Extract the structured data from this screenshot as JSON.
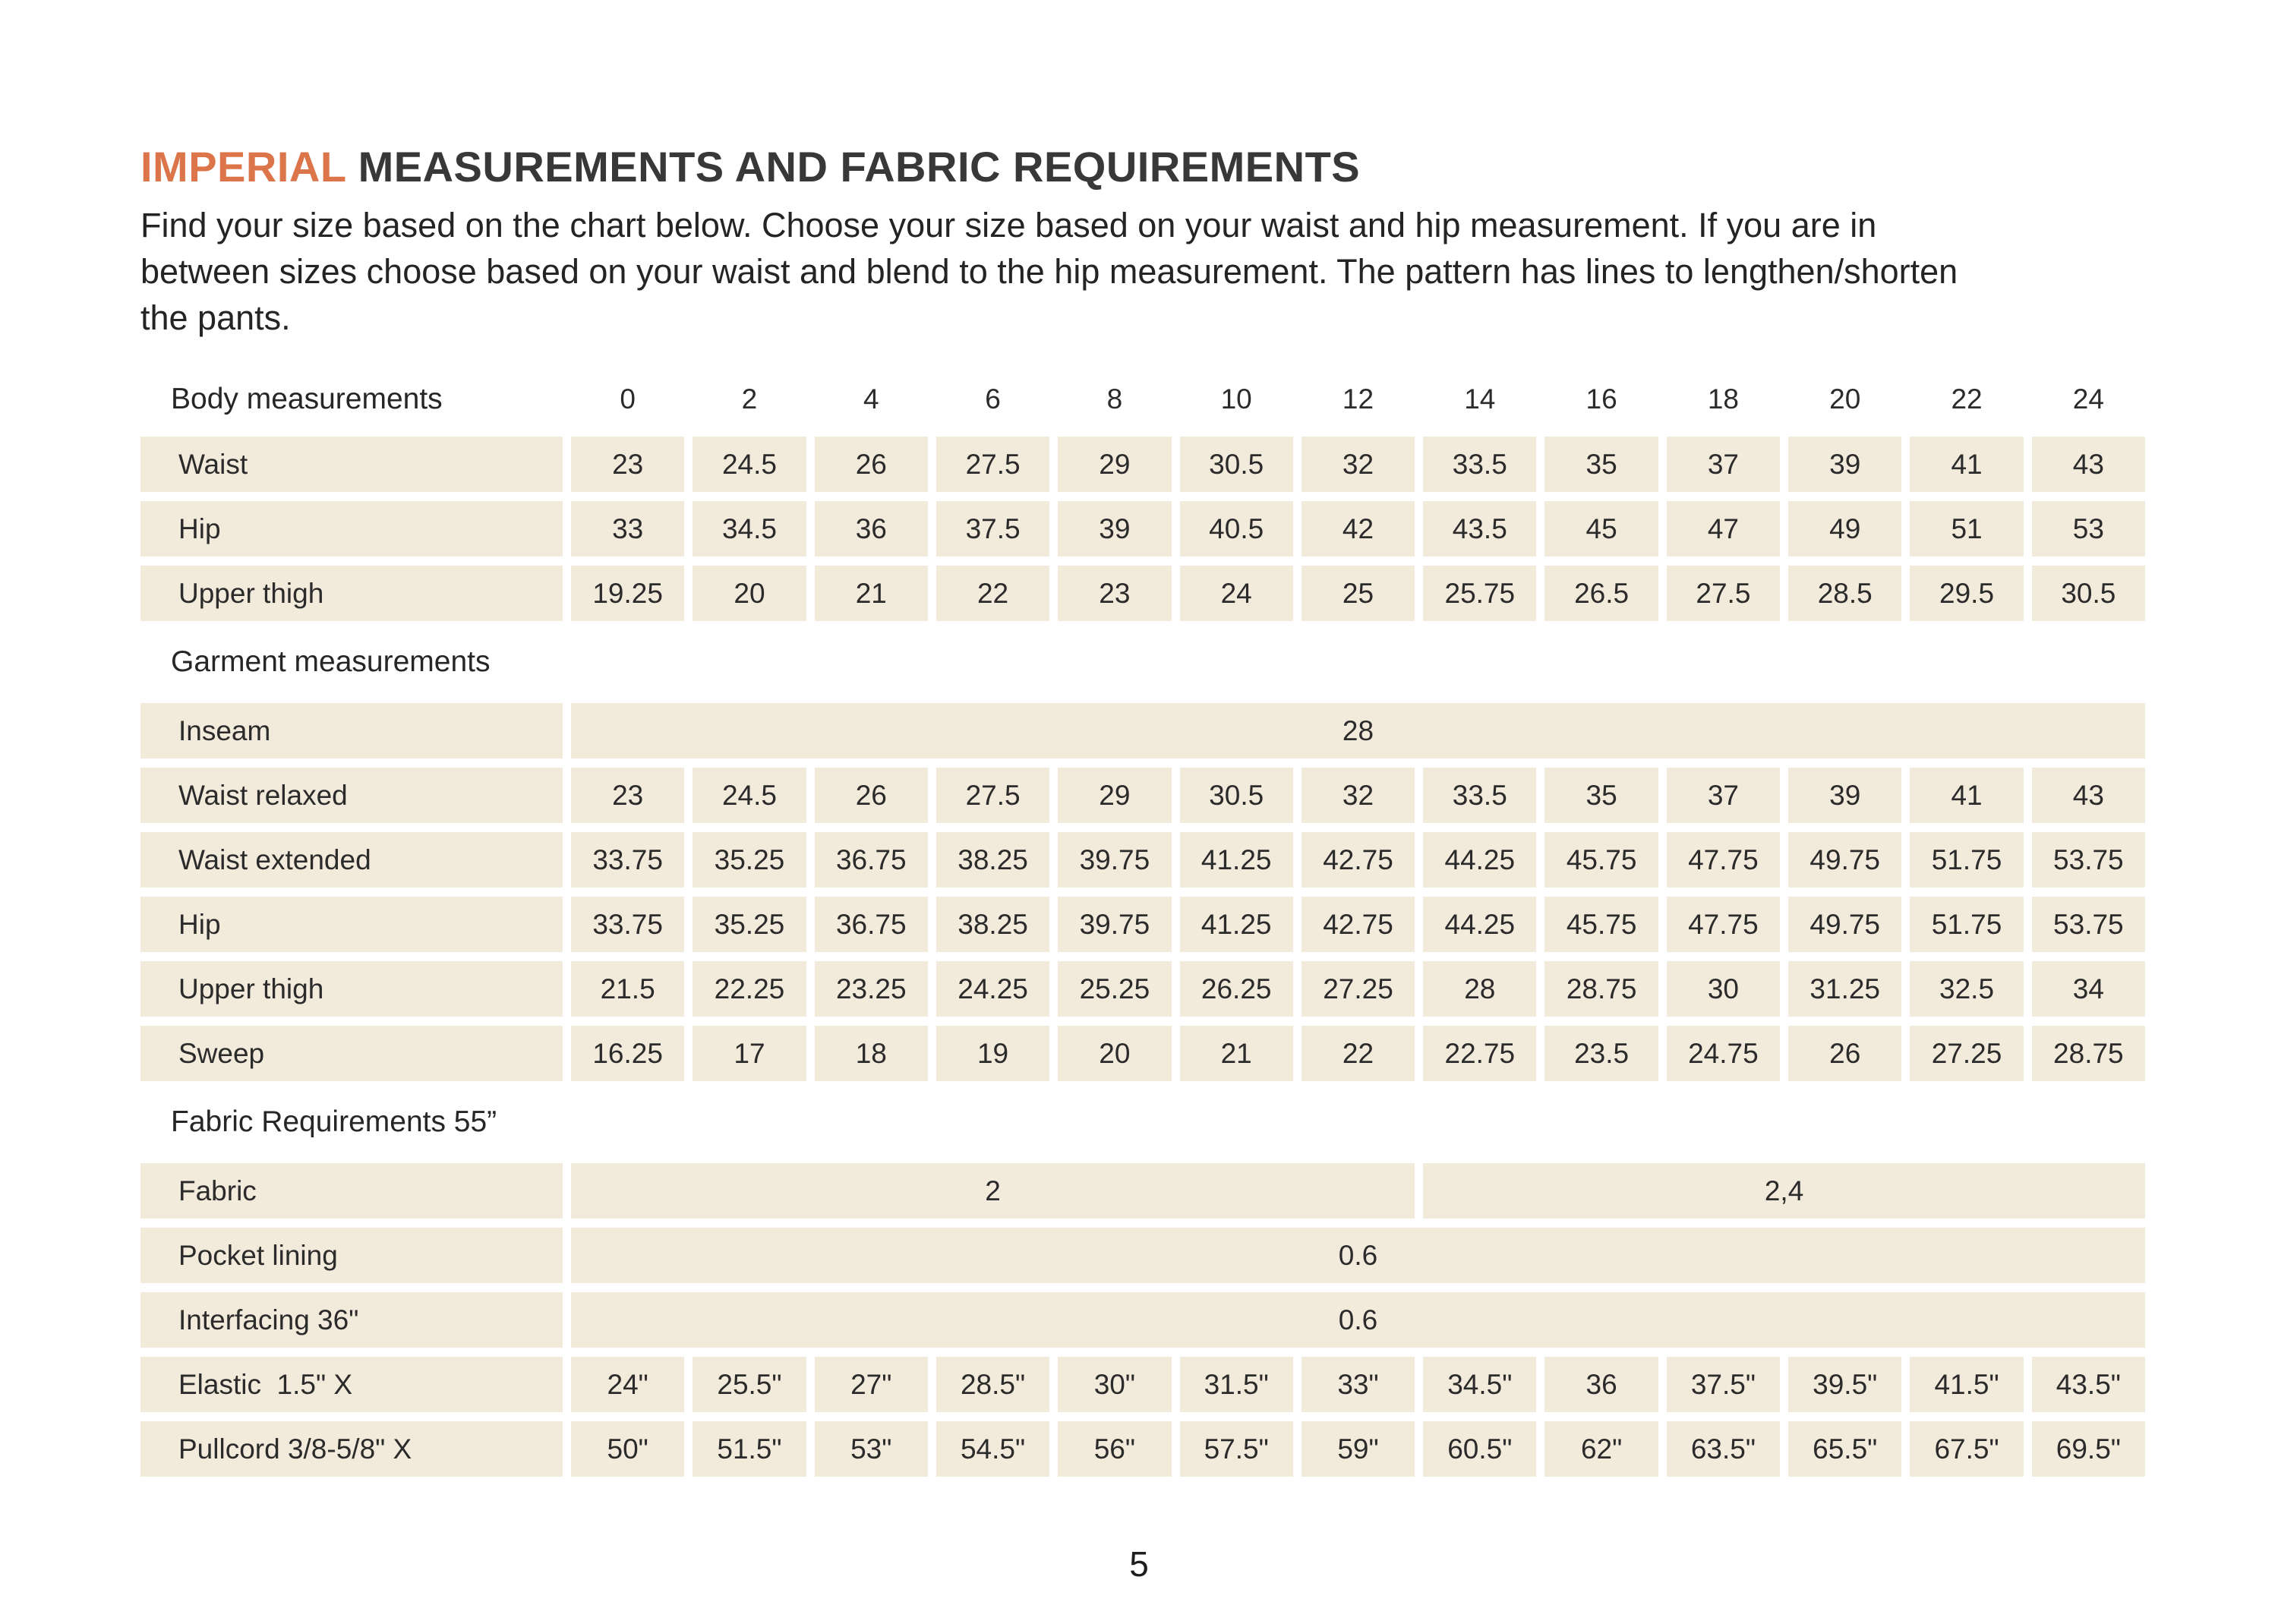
{
  "colors": {
    "accent": "#DC764A",
    "cell": "#F2EADB",
    "ink": "#2B2B2B",
    "title_ink": "#383838"
  },
  "header": {
    "title_highlight": "IMPERIAL",
    "title_rest": " MEASUREMENTS AND FABRIC REQUIREMENTS",
    "description_lines": [
      "Find your size based on the chart below. Choose your size based on your waist and hip measurement. If you are in",
      "between sizes choose based on your waist and blend to the hip measurement. The pattern has lines to lengthen/shorten",
      "the pants."
    ]
  },
  "table": {
    "sizes": [
      "0",
      "2",
      "4",
      "6",
      "8",
      "10",
      "12",
      "14",
      "16",
      "18",
      "20",
      "22",
      "24"
    ],
    "sections": [
      {
        "header": "Body measurements",
        "header_with_sizes": true,
        "rows": [
          {
            "label": "Waist",
            "values": [
              "23",
              "24.5",
              "26",
              "27.5",
              "29",
              "30.5",
              "32",
              "33.5",
              "35",
              "37",
              "39",
              "41",
              "43"
            ]
          },
          {
            "label": "Hip",
            "values": [
              "33",
              "34.5",
              "36",
              "37.5",
              "39",
              "40.5",
              "42",
              "43.5",
              "45",
              "47",
              "49",
              "51",
              "53"
            ]
          },
          {
            "label": "Upper thigh",
            "values": [
              "19.25",
              "20",
              "21",
              "22",
              "23",
              "24",
              "25",
              "25.75",
              "26.5",
              "27.5",
              "28.5",
              "29.5",
              "30.5"
            ]
          }
        ]
      },
      {
        "header": "Garment measurements",
        "header_with_sizes": false,
        "rows": [
          {
            "label": "Inseam",
            "spans": [
              {
                "value": "28",
                "cols": 13
              }
            ]
          },
          {
            "label": "Waist relaxed",
            "values": [
              "23",
              "24.5",
              "26",
              "27.5",
              "29",
              "30.5",
              "32",
              "33.5",
              "35",
              "37",
              "39",
              "41",
              "43"
            ]
          },
          {
            "label": "Waist extended",
            "values": [
              "33.75",
              "35.25",
              "36.75",
              "38.25",
              "39.75",
              "41.25",
              "42.75",
              "44.25",
              "45.75",
              "47.75",
              "49.75",
              "51.75",
              "53.75"
            ]
          },
          {
            "label": "Hip",
            "values": [
              "33.75",
              "35.25",
              "36.75",
              "38.25",
              "39.75",
              "41.25",
              "42.75",
              "44.25",
              "45.75",
              "47.75",
              "49.75",
              "51.75",
              "53.75"
            ]
          },
          {
            "label": "Upper thigh",
            "values": [
              "21.5",
              "22.25",
              "23.25",
              "24.25",
              "25.25",
              "26.25",
              "27.25",
              "28",
              "28.75",
              "30",
              "31.25",
              "32.5",
              "34"
            ]
          },
          {
            "label": "Sweep",
            "values": [
              "16.25",
              "17",
              "18",
              "19",
              "20",
              "21",
              "22",
              "22.75",
              "23.5",
              "24.75",
              "26",
              "27.25",
              "28.75"
            ]
          }
        ]
      },
      {
        "header": "Fabric Requirements 55”",
        "header_with_sizes": false,
        "rows": [
          {
            "label": "Fabric",
            "spans": [
              {
                "value": "2",
                "cols": 7
              },
              {
                "value": "2,4",
                "cols": 6
              }
            ]
          },
          {
            "label": "Pocket lining",
            "spans": [
              {
                "value": "0.6",
                "cols": 13
              }
            ]
          },
          {
            "label": "Interfacing 36\"",
            "spans": [
              {
                "value": "0.6",
                "cols": 13
              }
            ]
          },
          {
            "label": "Elastic  1.5\" X",
            "values": [
              "24\"",
              "25.5\"",
              "27\"",
              "28.5\"",
              "30\"",
              "31.5\"",
              "33\"",
              "34.5\"",
              "36",
              "37.5\"",
              "39.5\"",
              "41.5\"",
              "43.5\""
            ]
          },
          {
            "label": "Pullcord 3/8-5/8\" X",
            "values": [
              "50\"",
              "51.5\"",
              "53\"",
              "54.5\"",
              "56\"",
              "57.5\"",
              "59\"",
              "60.5\"",
              "62\"",
              "63.5\"",
              "65.5\"",
              "67.5\"",
              "69.5\""
            ]
          }
        ]
      }
    ]
  },
  "footer": {
    "page_number": "5"
  }
}
